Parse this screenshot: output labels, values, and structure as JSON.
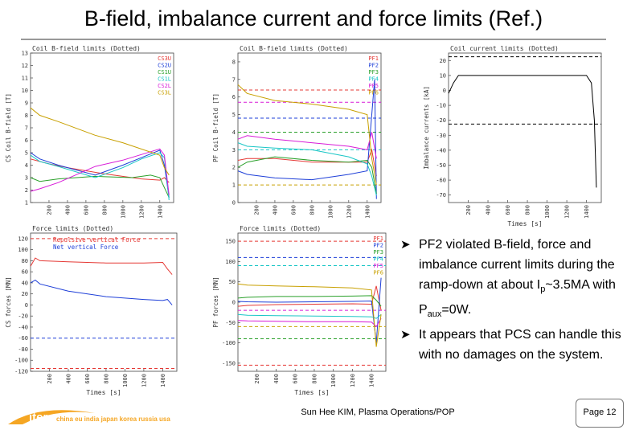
{
  "slide": {
    "title": "B-field, imbalance current and force limits (Ref.)",
    "bullets": [
      {
        "icon": "arrow-bullet-icon",
        "text_before": "PF2 violated B-field, force and imbalance current limits during the ramp-down at about I",
        "sub": "p",
        "text_mid": "~3.5MA with P",
        "sub2": "aux",
        "text_after": "=0W."
      },
      {
        "icon": "arrow-bullet-icon",
        "text": "It appears that PCS can handle this with no damages on the system."
      }
    ],
    "footer": {
      "logo_text": "iter",
      "members": "china eu india japan korea russia usa",
      "author": "Sun Hee KIM, Plasma Operations/POP",
      "page": "Page 12"
    }
  },
  "chart_data": [
    {
      "id": "cs-bfield",
      "type": "line",
      "title": "Coil B-field limits (Dotted)",
      "ylabel": "CS Coil B-field [T]",
      "ylim": [
        1,
        13
      ],
      "yticks": [
        "1",
        "2",
        "3",
        "4",
        "5",
        "6",
        "7",
        "8",
        "9",
        "10",
        "11",
        "12",
        "13"
      ],
      "xticks": [
        "200",
        "400",
        "600",
        "800",
        "1000",
        "1200",
        "1400"
      ],
      "xlim": [
        0,
        1550
      ],
      "legend": [
        "CS3U",
        "CS2U",
        "CS1U",
        "CS1L",
        "CS2L",
        "CS3L"
      ],
      "legend_colors": [
        "#e53935",
        "#1e3fd8",
        "#2aa02a",
        "#19c6c6",
        "#d81bd8",
        "#c8a000"
      ],
      "series": [
        {
          "name": "CS3U",
          "color": "#e53935",
          "x": [
            0,
            100,
            200,
            400,
            800,
            1200,
            1400,
            1450,
            1500
          ],
          "y": [
            4.5,
            4.3,
            4.1,
            3.8,
            3.3,
            2.9,
            2.8,
            3.0,
            2.6
          ]
        },
        {
          "name": "CS2U",
          "color": "#1e3fd8",
          "x": [
            0,
            100,
            300,
            700,
            1000,
            1200,
            1400,
            1450,
            1500
          ],
          "y": [
            5.0,
            4.5,
            4.0,
            3.2,
            4.0,
            4.6,
            5.2,
            4.0,
            1.4
          ]
        },
        {
          "name": "CS1U",
          "color": "#2aa02a",
          "x": [
            0,
            100,
            300,
            700,
            1100,
            1300,
            1400,
            1450,
            1500
          ],
          "y": [
            3.0,
            2.7,
            2.9,
            3.1,
            3.0,
            3.2,
            3.0,
            2.2,
            1.4
          ]
        },
        {
          "name": "CS1L",
          "color": "#19c6c6",
          "x": [
            0,
            100,
            300,
            700,
            1000,
            1200,
            1400,
            1450,
            1500
          ],
          "y": [
            4.8,
            4.3,
            3.9,
            3.0,
            3.8,
            4.5,
            5.0,
            4.6,
            1.2
          ]
        },
        {
          "name": "CS2L",
          "color": "#d81bd8",
          "x": [
            0,
            100,
            300,
            700,
            1000,
            1400,
            1450,
            1500
          ],
          "y": [
            1.9,
            2.1,
            2.6,
            3.9,
            4.4,
            5.3,
            4.8,
            1.6
          ]
        },
        {
          "name": "CS3L",
          "color": "#c8a000",
          "x": [
            0,
            100,
            300,
            700,
            1000,
            1400,
            1450,
            1500
          ],
          "y": [
            8.6,
            8.0,
            7.5,
            6.4,
            5.8,
            4.8,
            3.8,
            3.2
          ]
        }
      ]
    },
    {
      "id": "pf-bfield",
      "type": "line",
      "title": "Coil B-field limits (Dotted)",
      "ylabel": "PF Coil B-field [T]",
      "ylim": [
        0,
        8.5
      ],
      "yticks": [
        "0",
        "1",
        "2",
        "3",
        "4",
        "5",
        "6",
        "7",
        "8"
      ],
      "xticks": [
        "200",
        "400",
        "600",
        "800",
        "1000",
        "1200",
        "1400"
      ],
      "xlim": [
        0,
        1550
      ],
      "legend": [
        "PF1",
        "PF2",
        "PF3",
        "PF4",
        "PF5",
        "PF6"
      ],
      "legend_colors": [
        "#e53935",
        "#1e3fd8",
        "#2aa02a",
        "#19c6c6",
        "#d81bd8",
        "#c8a000"
      ],
      "limits": [
        {
          "color": "#e53935",
          "y": 6.4
        },
        {
          "color": "#1e3fd8",
          "y": 4.8
        },
        {
          "color": "#2aa02a",
          "y": 4.0
        },
        {
          "color": "#19c6c6",
          "y": 3.0
        },
        {
          "color": "#d81bd8",
          "y": 5.7
        },
        {
          "color": "#c8a000",
          "y": 1.0
        }
      ],
      "series": [
        {
          "name": "PF1",
          "color": "#e53935",
          "x": [
            0,
            100,
            400,
            800,
            1200,
            1400,
            1450,
            1500
          ],
          "y": [
            2.4,
            2.5,
            2.5,
            2.3,
            2.3,
            2.3,
            3.0,
            1.5
          ]
        },
        {
          "name": "PF2",
          "color": "#1e3fd8",
          "x": [
            0,
            100,
            400,
            800,
            1200,
            1400,
            1450,
            1480,
            1500
          ],
          "y": [
            1.8,
            1.6,
            1.4,
            1.3,
            1.6,
            1.8,
            5.0,
            7.0,
            0.2
          ]
        },
        {
          "name": "PF3",
          "color": "#2aa02a",
          "x": [
            0,
            100,
            400,
            800,
            1200,
            1400,
            1450,
            1500
          ],
          "y": [
            2.0,
            2.3,
            2.6,
            2.4,
            2.3,
            2.4,
            2.0,
            0.5
          ]
        },
        {
          "name": "PF4",
          "color": "#19c6c6",
          "x": [
            0,
            100,
            400,
            800,
            1200,
            1400,
            1450,
            1500
          ],
          "y": [
            3.4,
            3.2,
            3.1,
            3.0,
            2.6,
            2.2,
            1.5,
            0.4
          ]
        },
        {
          "name": "PF5",
          "color": "#d81bd8",
          "x": [
            0,
            100,
            400,
            800,
            1200,
            1400,
            1450,
            1500
          ],
          "y": [
            3.6,
            3.8,
            3.6,
            3.4,
            3.2,
            3.0,
            4.0,
            2.5
          ]
        },
        {
          "name": "PF6",
          "color": "#c8a000",
          "x": [
            0,
            100,
            400,
            800,
            1200,
            1400,
            1450,
            1500
          ],
          "y": [
            6.7,
            6.2,
            5.8,
            5.6,
            5.3,
            5.0,
            2.5,
            1.0
          ]
        }
      ]
    },
    {
      "id": "imbalance",
      "type": "line",
      "title": "Coil current limits (Dotted)",
      "ylabel": "Imbalance currents [kA]",
      "xlabel": "Times [s]",
      "ylim": [
        -75,
        25
      ],
      "yticks": [
        "-70",
        "-60",
        "-50",
        "-40",
        "-30",
        "-20",
        "-10",
        "0",
        "10",
        "20"
      ],
      "xticks": [
        "200",
        "400",
        "600",
        "800",
        "1000",
        "1200",
        "1400"
      ],
      "xlim": [
        0,
        1550
      ],
      "limits": [
        {
          "color": "#000000",
          "y": 22.5
        },
        {
          "color": "#000000",
          "y": -22.5
        }
      ],
      "series": [
        {
          "name": "",
          "color": "#000000",
          "x": [
            0,
            50,
            100,
            1400,
            1450,
            1480,
            1500
          ],
          "y": [
            -2,
            5,
            10,
            10,
            5,
            -20,
            -65
          ]
        }
      ]
    },
    {
      "id": "cs-force",
      "type": "line",
      "title": "Force limits (Dotted)",
      "ylabel": "CS forces [MN]",
      "xlabel": "Times [s]",
      "ylim": [
        -120,
        130
      ],
      "yticks": [
        "-120",
        "-100",
        "-80",
        "-60",
        "-40",
        "-20",
        "0",
        "20",
        "40",
        "60",
        "80",
        "100",
        "120"
      ],
      "xticks": [
        "200",
        "400",
        "600",
        "800",
        "1000",
        "1200",
        "1400"
      ],
      "xlim": [
        0,
        1550
      ],
      "legend": [
        "Repulsive vertical Force",
        "Net vertical Force"
      ],
      "legend_colors": [
        "#e53935",
        "#1e3fd8"
      ],
      "limits": [
        {
          "color": "#e53935",
          "y": 120
        },
        {
          "color": "#1e3fd8",
          "y": -60
        },
        {
          "color": "#e53935",
          "y": -115
        }
      ],
      "series": [
        {
          "name": "Repulsive vertical Force",
          "color": "#e53935",
          "x": [
            0,
            50,
            100,
            400,
            800,
            1200,
            1400,
            1450,
            1500
          ],
          "y": [
            70,
            85,
            80,
            78,
            76,
            76,
            77,
            65,
            55
          ]
        },
        {
          "name": "Net vertical Force",
          "color": "#1e3fd8",
          "x": [
            0,
            50,
            100,
            400,
            800,
            1200,
            1400,
            1450,
            1500
          ],
          "y": [
            40,
            45,
            38,
            25,
            15,
            10,
            8,
            10,
            0
          ]
        }
      ]
    },
    {
      "id": "pf-force",
      "type": "line",
      "title": "Force limits (Dotted)",
      "ylabel": "PF forces [MN]",
      "xlabel": "Times [s]",
      "ylim": [
        -170,
        170
      ],
      "yticks": [
        "-150",
        "-100",
        "-50",
        "0",
        "50",
        "100",
        "150"
      ],
      "xticks": [
        "200",
        "400",
        "600",
        "800",
        "1000",
        "1200",
        "1400"
      ],
      "xlim": [
        0,
        1550
      ],
      "legend": [
        "PF1",
        "PF2",
        "PF3",
        "PF4",
        "PF5",
        "PF6"
      ],
      "legend_colors": [
        "#e53935",
        "#1e3fd8",
        "#2aa02a",
        "#19c6c6",
        "#d81bd8",
        "#c8a000"
      ],
      "limits": [
        {
          "color": "#e53935",
          "y": 150
        },
        {
          "color": "#1e3fd8",
          "y": 110
        },
        {
          "color": "#19c6c6",
          "y": 90
        },
        {
          "color": "#d81bd8",
          "y": -20
        },
        {
          "color": "#c8a000",
          "y": -60
        },
        {
          "color": "#2aa02a",
          "y": -90
        },
        {
          "color": "#e53935",
          "y": -155
        }
      ],
      "series": [
        {
          "name": "PF1",
          "color": "#e53935",
          "x": [
            0,
            100,
            400,
            800,
            1200,
            1400,
            1450,
            1500
          ],
          "y": [
            -10,
            -8,
            -6,
            -5,
            -4,
            -5,
            40,
            -20
          ]
        },
        {
          "name": "PF2",
          "color": "#1e3fd8",
          "x": [
            0,
            100,
            400,
            800,
            1200,
            1400,
            1450,
            1500
          ],
          "y": [
            2,
            1,
            0,
            1,
            2,
            3,
            -100,
            60
          ]
        },
        {
          "name": "PF3",
          "color": "#2aa02a",
          "x": [
            0,
            100,
            400,
            800,
            1200,
            1400,
            1450,
            1500
          ],
          "y": [
            10,
            12,
            14,
            14,
            15,
            16,
            5,
            -10
          ]
        },
        {
          "name": "PF4",
          "color": "#19c6c6",
          "x": [
            0,
            100,
            400,
            800,
            1200,
            1400,
            1450,
            1500
          ],
          "y": [
            -30,
            -32,
            -33,
            -34,
            -35,
            -36,
            -40,
            -30
          ]
        },
        {
          "name": "PF5",
          "color": "#d81bd8",
          "x": [
            0,
            100,
            400,
            800,
            1200,
            1400,
            1450,
            1500
          ],
          "y": [
            -45,
            -46,
            -47,
            -48,
            -48,
            -49,
            -60,
            -40
          ]
        },
        {
          "name": "PF6",
          "color": "#c8a000",
          "x": [
            0,
            100,
            400,
            800,
            1200,
            1400,
            1450,
            1500
          ],
          "y": [
            45,
            42,
            40,
            38,
            35,
            30,
            -110,
            -30
          ]
        }
      ]
    }
  ]
}
